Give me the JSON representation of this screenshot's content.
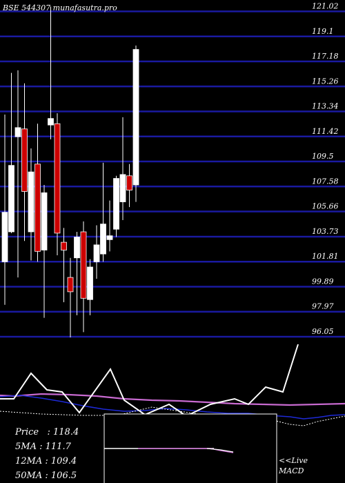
{
  "header": {
    "title": "BSE 544307 munafasutra.pro"
  },
  "stats": [
    {
      "label": "Price   :",
      "value": "118.4"
    },
    {
      "label": "5MA :",
      "value": "111.7"
    },
    {
      "label": "12MA :",
      "value": "109.4"
    },
    {
      "label": "50MA :",
      "value": "106.5"
    }
  ],
  "macd_panel": {
    "line1": "<<Live",
    "line2": "MACD"
  },
  "colors": {
    "background": "#000000",
    "grid": "#1a1aa0",
    "up": "#ffffff",
    "down": "#cc0000",
    "ma_pink": "#c86ad0",
    "ma_blue": "#1e2ad8",
    "text": "#ffffff"
  },
  "chart_data": {
    "type": "candlestick",
    "y_ticks": [
      "121.02",
      "119.1",
      "117.18",
      "115.26",
      "113.34",
      "111.42",
      "109.5",
      "107.58",
      "105.66",
      "103.73",
      "101.81",
      "99.89",
      "97.97",
      "96.05"
    ],
    "ylim": [
      96.05,
      121.02
    ],
    "candles": [
      {
        "open": 101.8,
        "close": 105.6,
        "high": 113.1,
        "low": 98.5,
        "dir": "up"
      },
      {
        "open": 104.1,
        "close": 109.2,
        "high": 116.3,
        "low": 104.0,
        "dir": "up"
      },
      {
        "open": 111.4,
        "close": 112.1,
        "high": 116.5,
        "low": 100.6,
        "dir": "up"
      },
      {
        "open": 112.0,
        "close": 107.2,
        "high": 115.5,
        "low": 103.4,
        "dir": "down"
      },
      {
        "open": 104.1,
        "close": 108.7,
        "high": 110.5,
        "low": 101.9,
        "dir": "up"
      },
      {
        "open": 109.3,
        "close": 102.6,
        "high": 112.4,
        "low": 101.8,
        "dir": "down"
      },
      {
        "open": 102.7,
        "close": 107.1,
        "high": 107.7,
        "low": 97.5,
        "dir": "up"
      },
      {
        "open": 112.3,
        "close": 112.8,
        "high": 121.4,
        "low": 111.2,
        "dir": "up"
      },
      {
        "open": 112.4,
        "close": 104.0,
        "high": 113.2,
        "low": 102.3,
        "dir": "down"
      },
      {
        "open": 103.3,
        "close": 102.7,
        "high": 104.4,
        "low": 98.7,
        "dir": "down"
      },
      {
        "open": 100.6,
        "close": 99.5,
        "high": 102.1,
        "low": 96.0,
        "dir": "down"
      },
      {
        "open": 102.1,
        "close": 103.7,
        "high": 104.1,
        "low": 97.7,
        "dir": "up"
      },
      {
        "open": 104.1,
        "close": 99.0,
        "high": 104.9,
        "low": 96.4,
        "dir": "down"
      },
      {
        "open": 98.9,
        "close": 101.4,
        "high": 102.0,
        "low": 97.7,
        "dir": "up"
      },
      {
        "open": 101.8,
        "close": 103.1,
        "high": 104.6,
        "low": 100.5,
        "dir": "up"
      },
      {
        "open": 102.4,
        "close": 104.7,
        "high": 109.4,
        "low": 101.8,
        "dir": "up"
      },
      {
        "open": 103.5,
        "close": 103.8,
        "high": 106.5,
        "low": 102.6,
        "dir": "up"
      },
      {
        "open": 104.3,
        "close": 108.2,
        "high": 108.4,
        "low": 103.7,
        "dir": "up"
      },
      {
        "open": 106.4,
        "close": 108.5,
        "high": 112.9,
        "low": 105.0,
        "dir": "up"
      },
      {
        "open": 108.4,
        "close": 107.3,
        "high": 109.3,
        "low": 106.0,
        "dir": "down"
      },
      {
        "open": 107.7,
        "close": 118.1,
        "high": 118.4,
        "low": 106.4,
        "dir": "up"
      }
    ]
  }
}
